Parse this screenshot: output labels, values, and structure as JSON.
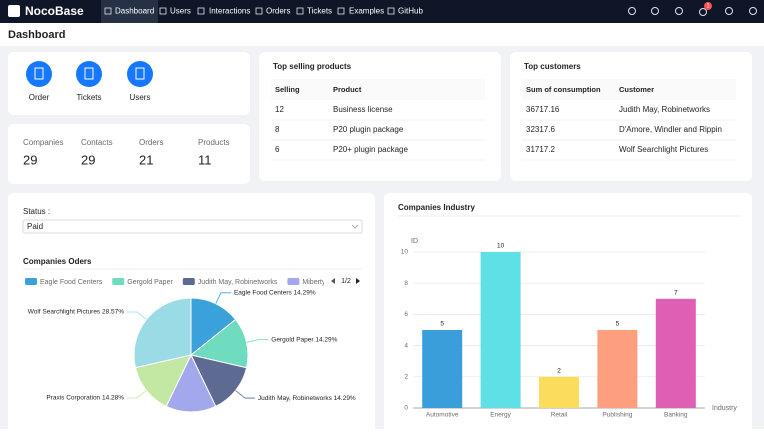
{
  "nav": {
    "logo": "NocoBase",
    "menu": [
      "Dashboard",
      "Users",
      "Interactions",
      "Orders",
      "Tickets",
      "Examples",
      "GitHub"
    ],
    "badge": "1"
  },
  "header": {
    "title": "Dashboard"
  },
  "shortcuts": [
    "Order",
    "Tickets",
    "Users"
  ],
  "stats": [
    {
      "label": "Companies",
      "value": 29
    },
    {
      "label": "Contacts",
      "value": 29
    },
    {
      "label": "Orders",
      "value": 21
    },
    {
      "label": "Products",
      "value": 11
    }
  ],
  "top_products": {
    "title": "Top selling products",
    "columns": [
      "Selling",
      "Product"
    ],
    "rows": [
      [
        12,
        "Business license"
      ],
      [
        8,
        "P20 plugin package"
      ],
      [
        6,
        "P20+ plugin package"
      ]
    ]
  },
  "top_customers": {
    "title": "Top customers",
    "columns": [
      "Sum of consumption",
      "Customer"
    ],
    "rows": [
      [
        36717.16,
        "Judith May, Robinetworks"
      ],
      [
        32317.6,
        "D'Amore, Windler and Rippin"
      ],
      [
        31717.2,
        "Wolf Searchlight Pictures"
      ]
    ]
  },
  "filter": {
    "label": "Status :",
    "value": "Paid"
  },
  "chart_data": [
    {
      "type": "pie",
      "title": "Companies Oders",
      "categories": [
        "Eagle Food Centers",
        "Gergold Paper",
        "Judith May, Robinetworks",
        "Miberty Images",
        "Praxis Corporation",
        "Wolf Searchlight Pictures"
      ],
      "values": [
        14.29,
        14.29,
        14.29,
        14.29,
        14.28,
        28.57
      ],
      "value_labels": [
        "Eagle Food Centers 14.29%",
        "Gergold Paper 14.29%",
        "Judith May, Robinetworks 14.29%",
        null,
        "Praxis Corporation 14.28%",
        "Wolf Searchlight Pictures 28.57%"
      ],
      "colors": [
        "#3ba1db",
        "#6fdcbf",
        "#5d6b92",
        "#a3a8ed",
        "#c3e8a4",
        "#9bdbe6"
      ],
      "legend_page": "1/2"
    },
    {
      "type": "bar",
      "title": "Companies Industry",
      "y_label": "ID",
      "x_label": "Industry",
      "categories": [
        "Automotive",
        "Energy",
        "Retail",
        "Publishing",
        "Banking"
      ],
      "values": [
        5,
        10,
        2,
        5,
        7
      ],
      "colors": [
        "#3a9edb",
        "#5fdfe6",
        "#fcdc5c",
        "#fd9e7f",
        "#de5fb4"
      ],
      "ylim": [
        0,
        10
      ],
      "yticks": [
        0,
        2,
        4,
        6,
        8,
        10
      ],
      "grid": true
    }
  ]
}
